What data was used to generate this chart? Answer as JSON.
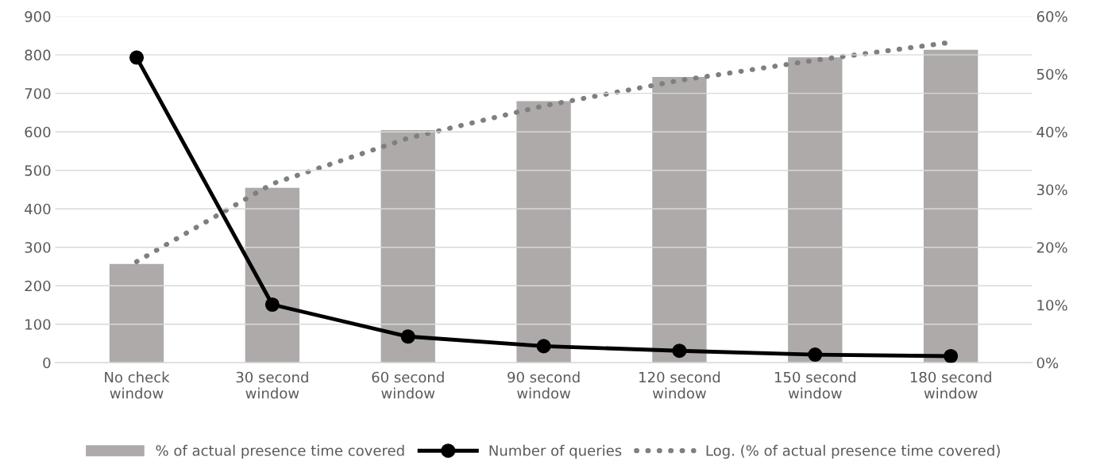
{
  "chart_data": {
    "type": "bar",
    "categories": [
      "No check\nwindow",
      "30 second\nwindow",
      "60 second\nwindow",
      "90 second\nwindow",
      "120 second\nwindow",
      "150 second\nwindow",
      "180 second\nwindow"
    ],
    "series": [
      {
        "name": "% of actual presence time covered",
        "axis": "y2",
        "color": "#aeaaaa",
        "values": [
          17.1,
          30.3,
          40.3,
          45.3,
          49.5,
          52.9,
          54.2
        ]
      },
      {
        "name": "Number of queries",
        "type": "line",
        "axis": "y",
        "color": "#000000",
        "marker": "circle",
        "line_style": "solid",
        "values": [
          793,
          151,
          68,
          43,
          31,
          21,
          17
        ]
      },
      {
        "name": "Log. (% of actual presence time covered)",
        "type": "line",
        "axis": "y2",
        "color": "#7f7f7f",
        "marker": "none",
        "line_style": "dotted",
        "x": [
          "No check\nwindow",
          "30 second\nwindow",
          "60 second\nwindow",
          "90 second\nwindow",
          "120 second\nwindow",
          "150 second\nwindow",
          "180 second\nwindow"
        ],
        "values": [
          17.5,
          31.0,
          38.9,
          44.5,
          48.9,
          52.4,
          55.5
        ]
      }
    ],
    "ylim": [
      0,
      900
    ],
    "yticks": [
      0,
      100,
      200,
      300,
      400,
      500,
      600,
      700,
      800,
      900
    ],
    "y2lim": [
      0,
      60
    ],
    "y2ticks": [
      {
        "value": 0,
        "label": "0%"
      },
      {
        "value": 10,
        "label": "10%"
      },
      {
        "value": 20,
        "label": "20%"
      },
      {
        "value": 30,
        "label": "30%"
      },
      {
        "value": 40,
        "label": "40%"
      },
      {
        "value": 50,
        "label": "50%"
      },
      {
        "value": 60,
        "label": "60%"
      }
    ],
    "grid": "y",
    "legend": "bottom"
  }
}
